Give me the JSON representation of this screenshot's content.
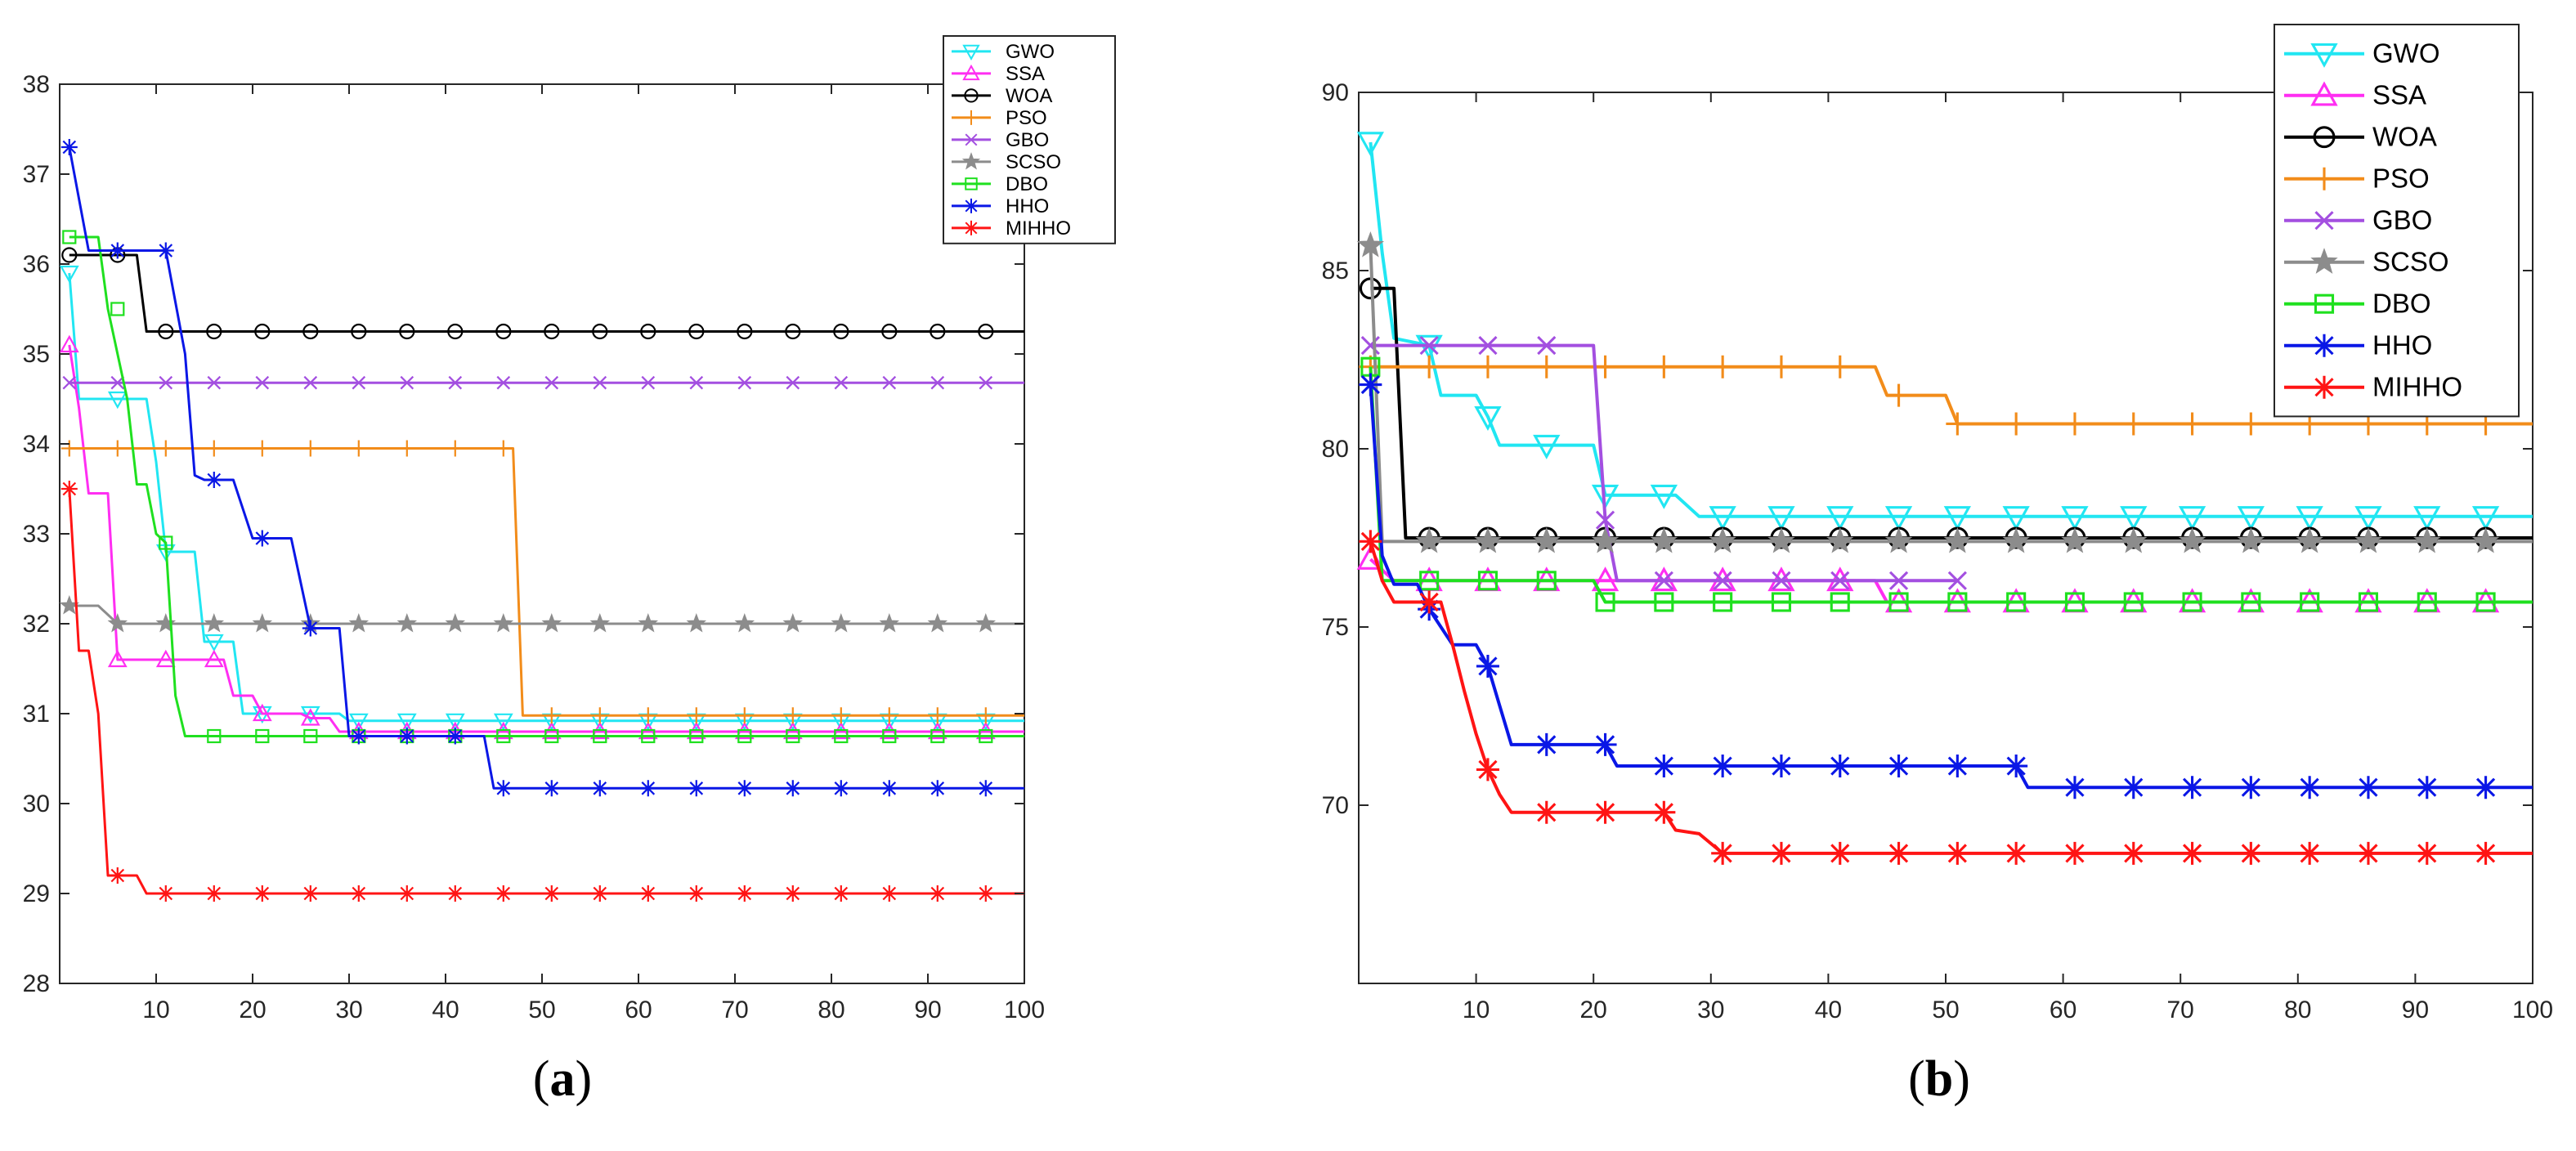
{
  "captions": {
    "a": {
      "open": "(",
      "letter": "a",
      "close": ")"
    },
    "b": {
      "open": "(",
      "letter": "b",
      "close": ")"
    }
  },
  "chart_data": [
    {
      "id": "a",
      "type": "line",
      "title": "",
      "xlabel": "",
      "ylabel": "",
      "xlim": [
        0,
        100
      ],
      "ylim": [
        28,
        38
      ],
      "xticks": [
        10,
        20,
        30,
        40,
        50,
        60,
        70,
        80,
        90,
        100
      ],
      "yticks": [
        28,
        29,
        30,
        31,
        32,
        33,
        34,
        35,
        36,
        37,
        38
      ],
      "legend_position": "top-right",
      "series": [
        {
          "name": "GWO",
          "color": "#21e6f2",
          "marker": "triangle-down",
          "steps": [
            [
              1,
              35.9
            ],
            [
              2,
              34.5
            ],
            [
              9,
              34.5
            ],
            [
              10,
              33.8
            ],
            [
              11,
              32.8
            ],
            [
              14,
              32.8
            ],
            [
              15,
              31.8
            ],
            [
              18,
              31.8
            ],
            [
              19,
              31.0
            ],
            [
              29,
              31.0
            ],
            [
              30,
              30.92
            ],
            [
              100,
              30.92
            ]
          ]
        },
        {
          "name": "SSA",
          "color": "#ff2ef2",
          "marker": "triangle",
          "steps": [
            [
              1,
              35.1
            ],
            [
              2,
              34.4
            ],
            [
              3,
              33.45
            ],
            [
              5,
              33.45
            ],
            [
              6,
              31.6
            ],
            [
              17,
              31.6
            ],
            [
              18,
              31.2
            ],
            [
              20,
              31.2
            ],
            [
              21,
              31.0
            ],
            [
              25,
              31.0
            ],
            [
              26,
              30.95
            ],
            [
              28,
              30.95
            ],
            [
              29,
              30.8
            ],
            [
              100,
              30.8
            ]
          ]
        },
        {
          "name": "WOA",
          "color": "#000000",
          "marker": "circle",
          "steps": [
            [
              1,
              36.1
            ],
            [
              8,
              36.1
            ],
            [
              9,
              35.25
            ],
            [
              100,
              35.25
            ]
          ]
        },
        {
          "name": "PSO",
          "color": "#f28c1a",
          "marker": "plus",
          "steps": [
            [
              1,
              33.95
            ],
            [
              47,
              33.95
            ],
            [
              48,
              30.98
            ],
            [
              100,
              30.98
            ]
          ]
        },
        {
          "name": "GBO",
          "color": "#a34fe0",
          "marker": "x",
          "steps": [
            [
              1,
              34.68
            ],
            [
              100,
              34.68
            ]
          ]
        },
        {
          "name": "SCSO",
          "color": "#8c8c8c",
          "marker": "star",
          "steps": [
            [
              1,
              32.2
            ],
            [
              4,
              32.2
            ],
            [
              6,
              32.0
            ],
            [
              100,
              32.0
            ]
          ]
        },
        {
          "name": "DBO",
          "color": "#1fe01f",
          "marker": "square",
          "steps": [
            [
              1,
              36.3
            ],
            [
              4,
              36.3
            ],
            [
              5,
              35.5
            ],
            [
              7,
              34.5
            ],
            [
              8,
              33.55
            ],
            [
              9,
              33.55
            ],
            [
              10,
              33.0
            ],
            [
              11,
              32.9
            ],
            [
              12,
              31.2
            ],
            [
              13,
              30.75
            ],
            [
              100,
              30.75
            ]
          ]
        },
        {
          "name": "HHO",
          "color": "#0a17e6",
          "marker": "asterisk",
          "steps": [
            [
              1,
              37.3
            ],
            [
              3,
              36.15
            ],
            [
              11,
              36.15
            ],
            [
              13,
              35.0
            ],
            [
              14,
              33.65
            ],
            [
              15,
              33.6
            ],
            [
              18,
              33.6
            ],
            [
              20,
              32.95
            ],
            [
              24,
              32.95
            ],
            [
              26,
              31.95
            ],
            [
              29,
              31.95
            ],
            [
              30,
              30.75
            ],
            [
              44,
              30.75
            ],
            [
              45,
              30.17
            ],
            [
              100,
              30.17
            ]
          ]
        },
        {
          "name": "MIHHO",
          "color": "#ff1414",
          "marker": "asterisk",
          "steps": [
            [
              1,
              33.5
            ],
            [
              2,
              31.7
            ],
            [
              3,
              31.7
            ],
            [
              4,
              31.0
            ],
            [
              5,
              29.2
            ],
            [
              8,
              29.2
            ],
            [
              9,
              29.0
            ],
            [
              100,
              29.0
            ]
          ]
        }
      ]
    },
    {
      "id": "b",
      "type": "line",
      "title": "",
      "xlabel": "",
      "ylabel": "",
      "xlim": [
        0,
        100
      ],
      "ylim": [
        65,
        90
      ],
      "xticks": [
        10,
        20,
        30,
        40,
        50,
        60,
        70,
        80,
        90,
        100
      ],
      "yticks": [
        70,
        75,
        80,
        85,
        90
      ],
      "legend_position": "top-right",
      "series": [
        {
          "name": "GWO",
          "color": "#21e6f2",
          "marker": "triangle-down",
          "steps": [
            [
              1,
              88.6
            ],
            [
              2,
              85.5
            ],
            [
              3,
              83.1
            ],
            [
              6,
              82.9
            ],
            [
              7,
              81.5
            ],
            [
              10,
              81.5
            ],
            [
              11,
              80.9
            ],
            [
              12,
              80.1
            ],
            [
              20,
              80.1
            ],
            [
              21,
              78.7
            ],
            [
              27,
              78.7
            ],
            [
              29,
              78.1
            ],
            [
              100,
              78.1
            ]
          ]
        },
        {
          "name": "SSA",
          "color": "#ff2ef2",
          "marker": "triangle",
          "steps": [
            [
              1,
              76.9
            ],
            [
              3,
              76.3
            ],
            [
              22,
              76.3
            ],
            [
              23,
              76.3
            ],
            [
              44,
              76.3
            ],
            [
              45,
              75.7
            ],
            [
              100,
              75.7
            ]
          ]
        },
        {
          "name": "WOA",
          "color": "#000000",
          "marker": "circle",
          "steps": [
            [
              1,
              84.5
            ],
            [
              3,
              84.5
            ],
            [
              4,
              77.5
            ],
            [
              100,
              77.5
            ]
          ]
        },
        {
          "name": "PSO",
          "color": "#f28c1a",
          "marker": "plus",
          "steps": [
            [
              1,
              82.3
            ],
            [
              44,
              82.3
            ],
            [
              45,
              81.5
            ],
            [
              50,
              81.5
            ],
            [
              51,
              80.7
            ],
            [
              100,
              80.7
            ]
          ]
        },
        {
          "name": "GBO",
          "color": "#a34fe0",
          "marker": "x",
          "steps": [
            [
              1,
              82.9
            ],
            [
              20,
              82.9
            ],
            [
              21,
              78.0
            ],
            [
              22,
              76.3
            ],
            [
              51,
              76.3
            ]
          ]
        },
        {
          "name": "SCSO",
          "color": "#8c8c8c",
          "marker": "star",
          "steps": [
            [
              1,
              85.7
            ],
            [
              2,
              77.4
            ],
            [
              100,
              77.4
            ]
          ]
        },
        {
          "name": "DBO",
          "color": "#1fe01f",
          "marker": "square",
          "steps": [
            [
              1,
              82.3
            ],
            [
              2,
              76.3
            ],
            [
              20,
              76.3
            ],
            [
              21,
              75.7
            ],
            [
              100,
              75.7
            ]
          ]
        },
        {
          "name": "HHO",
          "color": "#0a17e6",
          "marker": "asterisk",
          "steps": [
            [
              1,
              81.8
            ],
            [
              2,
              77.0
            ],
            [
              3,
              76.2
            ],
            [
              5,
              76.2
            ],
            [
              6,
              75.5
            ],
            [
              8,
              74.5
            ],
            [
              10,
              74.5
            ],
            [
              11,
              73.9
            ],
            [
              12,
              72.8
            ],
            [
              13,
              71.7
            ],
            [
              21,
              71.7
            ],
            [
              22,
              71.1
            ],
            [
              55,
              71.1
            ],
            [
              56,
              71.1
            ],
            [
              57,
              70.5
            ],
            [
              100,
              70.5
            ]
          ]
        },
        {
          "name": "MIHHO",
          "color": "#ff1414",
          "marker": "asterisk",
          "steps": [
            [
              1,
              77.4
            ],
            [
              2,
              76.3
            ],
            [
              3,
              75.7
            ],
            [
              7,
              75.7
            ],
            [
              8,
              74.5
            ],
            [
              9,
              73.2
            ],
            [
              10,
              72.0
            ],
            [
              11,
              71.0
            ],
            [
              12,
              70.3
            ],
            [
              13,
              69.8
            ],
            [
              26,
              69.8
            ],
            [
              27,
              69.3
            ],
            [
              29,
              69.2
            ],
            [
              31,
              68.65
            ],
            [
              100,
              68.65
            ]
          ]
        }
      ]
    }
  ]
}
